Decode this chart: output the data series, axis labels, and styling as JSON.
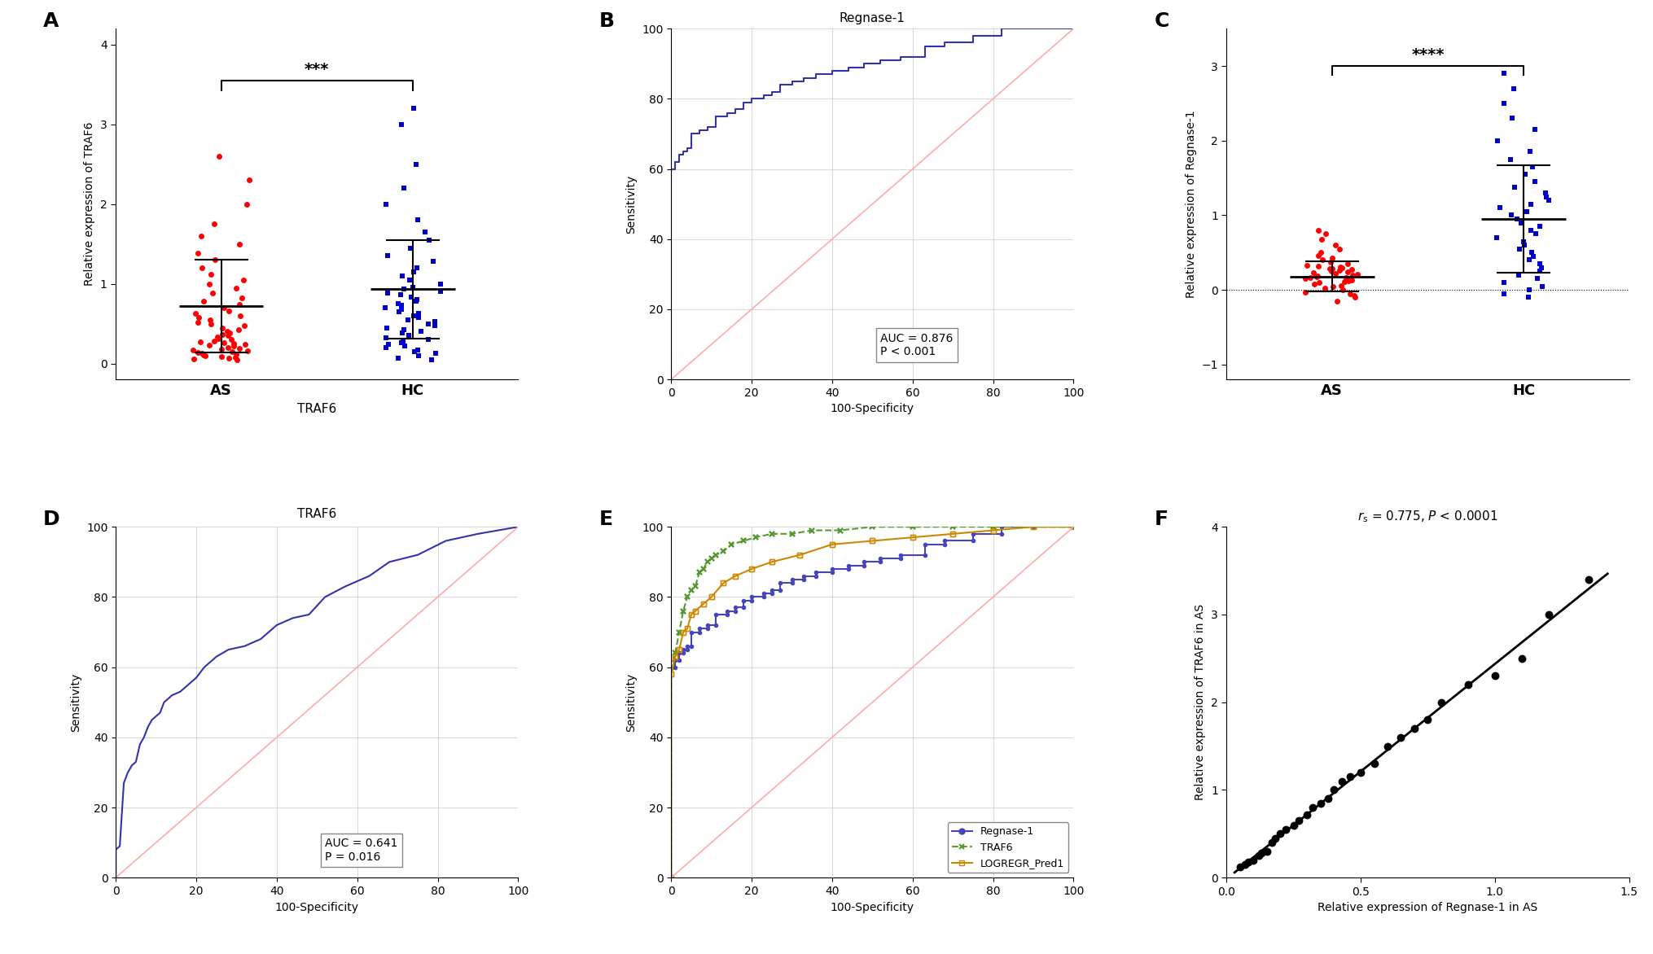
{
  "panel_A": {
    "ylabel": "Relative expression of TRAF6",
    "xlabel": "TRAF6",
    "groups": [
      "AS",
      "HC"
    ],
    "AS_data": [
      0.05,
      0.06,
      0.07,
      0.08,
      0.09,
      0.1,
      0.11,
      0.12,
      0.13,
      0.14,
      0.15,
      0.16,
      0.17,
      0.18,
      0.19,
      0.2,
      0.22,
      0.23,
      0.24,
      0.25,
      0.26,
      0.27,
      0.28,
      0.3,
      0.31,
      0.33,
      0.35,
      0.36,
      0.38,
      0.4,
      0.42,
      0.45,
      0.48,
      0.5,
      0.52,
      0.55,
      0.58,
      0.6,
      0.63,
      0.66,
      0.7,
      0.74,
      0.78,
      0.82,
      0.88,
      0.95,
      1.0,
      1.05,
      1.12,
      1.2,
      1.3,
      1.38,
      1.5,
      1.6,
      1.75,
      2.0,
      2.3,
      2.6
    ],
    "HC_data": [
      0.05,
      0.07,
      0.1,
      0.13,
      0.15,
      0.17,
      0.2,
      0.22,
      0.24,
      0.26,
      0.28,
      0.3,
      0.32,
      0.35,
      0.38,
      0.4,
      0.42,
      0.45,
      0.48,
      0.5,
      0.53,
      0.55,
      0.58,
      0.6,
      0.63,
      0.65,
      0.68,
      0.7,
      0.73,
      0.75,
      0.78,
      0.8,
      0.83,
      0.86,
      0.88,
      0.9,
      0.93,
      0.96,
      1.0,
      1.05,
      1.1,
      1.15,
      1.2,
      1.28,
      1.35,
      1.45,
      1.55,
      1.65,
      1.8,
      2.0,
      2.2,
      2.5,
      3.0,
      3.2
    ],
    "AS_mean": 0.72,
    "AS_sd": 0.58,
    "HC_mean": 0.93,
    "HC_sd": 0.62,
    "AS_color": "#FF0000",
    "HC_color": "#0000CC",
    "significance": "***",
    "ylim": [
      -0.2,
      4.2
    ],
    "yticks": [
      0,
      1,
      2,
      3,
      4
    ]
  },
  "panel_B": {
    "subtitle": "Regnase-1",
    "xlabel": "100-Specificity",
    "ylabel": "Sensitivity",
    "auc_text": "AUC = 0.876\nP < 0.001",
    "roc_color": "#3333AA",
    "diag_color": "#FFAAAA",
    "xlim": [
      0,
      100
    ],
    "ylim": [
      0,
      100
    ],
    "xticks": [
      0,
      20,
      40,
      60,
      80,
      100
    ],
    "yticks": [
      0,
      20,
      40,
      60,
      80,
      100
    ],
    "spec": [
      0,
      0,
      0,
      1,
      1,
      2,
      2,
      3,
      3,
      4,
      4,
      5,
      5,
      7,
      7,
      9,
      9,
      11,
      11,
      14,
      14,
      16,
      16,
      18,
      18,
      20,
      20,
      23,
      23,
      25,
      25,
      27,
      27,
      30,
      30,
      33,
      33,
      36,
      36,
      40,
      40,
      44,
      44,
      48,
      48,
      52,
      52,
      57,
      57,
      63,
      63,
      68,
      68,
      75,
      75,
      82,
      82,
      90,
      90,
      100
    ],
    "sens": [
      0,
      60,
      60,
      60,
      62,
      62,
      64,
      64,
      65,
      65,
      66,
      66,
      70,
      70,
      71,
      71,
      72,
      72,
      75,
      75,
      76,
      76,
      77,
      77,
      79,
      79,
      80,
      80,
      81,
      81,
      82,
      82,
      84,
      84,
      85,
      85,
      86,
      86,
      87,
      87,
      88,
      88,
      89,
      89,
      90,
      90,
      91,
      91,
      92,
      92,
      95,
      95,
      96,
      96,
      98,
      98,
      100,
      100,
      100,
      100
    ]
  },
  "panel_C": {
    "ylabel": "Relative expression of Regnase-1",
    "groups": [
      "AS",
      "HC"
    ],
    "AS_data": [
      -0.15,
      -0.1,
      -0.08,
      -0.05,
      -0.03,
      0.0,
      0.02,
      0.04,
      0.06,
      0.08,
      0.1,
      0.11,
      0.12,
      0.13,
      0.14,
      0.15,
      0.16,
      0.17,
      0.18,
      0.19,
      0.2,
      0.21,
      0.22,
      0.23,
      0.24,
      0.25,
      0.26,
      0.27,
      0.28,
      0.29,
      0.3,
      0.31,
      0.32,
      0.33,
      0.35,
      0.37,
      0.4,
      0.43,
      0.46,
      0.5,
      0.55,
      0.6,
      0.68,
      0.75,
      0.8
    ],
    "HC_data": [
      -0.1,
      -0.05,
      0.0,
      0.05,
      0.1,
      0.15,
      0.2,
      0.25,
      0.3,
      0.35,
      0.4,
      0.45,
      0.5,
      0.55,
      0.6,
      0.65,
      0.7,
      0.75,
      0.8,
      0.85,
      0.9,
      0.95,
      1.0,
      1.05,
      1.1,
      1.15,
      1.2,
      1.25,
      1.3,
      1.38,
      1.45,
      1.55,
      1.65,
      1.75,
      1.85,
      2.0,
      2.15,
      2.3,
      2.5,
      2.7,
      2.9
    ],
    "AS_mean": 0.18,
    "AS_sd": 0.2,
    "HC_mean": 0.95,
    "HC_sd": 0.72,
    "AS_color": "#FF0000",
    "HC_color": "#0000CC",
    "significance": "****",
    "ylim": [
      -1.2,
      3.5
    ],
    "yticks": [
      -1,
      0,
      1,
      2,
      3
    ]
  },
  "panel_D": {
    "subtitle": "TRAF6",
    "xlabel": "100-Specificity",
    "ylabel": "Sensitivity",
    "auc_text": "AUC = 0.641\nP = 0.016",
    "roc_color": "#3333AA",
    "diag_color": "#FFAAAA",
    "xlim": [
      0,
      100
    ],
    "ylim": [
      0,
      100
    ],
    "xticks": [
      0,
      20,
      40,
      60,
      80,
      100
    ],
    "yticks": [
      0,
      20,
      40,
      60,
      80,
      100
    ],
    "spec": [
      0,
      0,
      0,
      1,
      1,
      2,
      2,
      3,
      3,
      4,
      4,
      5,
      5,
      6,
      6,
      7,
      7,
      8,
      8,
      9,
      9,
      10,
      10,
      11,
      11,
      12,
      12,
      14,
      14,
      16,
      16,
      18,
      18,
      20,
      20,
      22,
      22,
      25,
      25,
      28,
      28,
      32,
      32,
      36,
      36,
      40,
      40,
      44,
      44,
      48,
      48,
      52,
      52,
      57,
      57,
      63,
      63,
      68,
      68,
      75,
      75,
      82,
      82,
      90,
      90,
      100
    ],
    "sens": [
      0,
      8,
      8,
      9,
      9,
      27,
      27,
      30,
      30,
      32,
      32,
      33,
      33,
      38,
      38,
      40,
      40,
      43,
      43,
      45,
      45,
      46,
      46,
      47,
      47,
      50,
      50,
      52,
      52,
      53,
      53,
      55,
      55,
      57,
      57,
      60,
      60,
      63,
      63,
      65,
      65,
      66,
      66,
      68,
      68,
      72,
      72,
      74,
      74,
      75,
      75,
      80,
      80,
      83,
      83,
      86,
      86,
      90,
      90,
      92,
      92,
      96,
      96,
      98,
      98,
      100
    ]
  },
  "panel_E": {
    "xlabel": "100-Specificity",
    "ylabel": "Sensitivity",
    "xlim": [
      0,
      100
    ],
    "ylim": [
      0,
      100
    ],
    "xticks": [
      0,
      20,
      40,
      60,
      80,
      100
    ],
    "yticks": [
      0,
      20,
      40,
      60,
      80,
      100
    ],
    "legend": [
      "Regnase-1",
      "TRAF6",
      "LOGREGR_Pred1"
    ],
    "colors": [
      "#4444BB",
      "#559933",
      "#CC8800"
    ],
    "regnase_spec": [
      0,
      0,
      0,
      1,
      1,
      2,
      2,
      3,
      3,
      4,
      4,
      5,
      5,
      7,
      7,
      9,
      9,
      11,
      11,
      14,
      14,
      16,
      16,
      18,
      18,
      20,
      20,
      23,
      23,
      25,
      25,
      27,
      27,
      30,
      30,
      33,
      33,
      36,
      36,
      40,
      40,
      44,
      44,
      48,
      48,
      52,
      52,
      57,
      57,
      63,
      63,
      68,
      68,
      75,
      75,
      82,
      82,
      90,
      90,
      100
    ],
    "regnase_sens": [
      0,
      60,
      60,
      60,
      62,
      62,
      64,
      64,
      65,
      65,
      66,
      66,
      70,
      70,
      71,
      71,
      72,
      72,
      75,
      75,
      76,
      76,
      77,
      77,
      79,
      79,
      80,
      80,
      81,
      81,
      82,
      82,
      84,
      84,
      85,
      85,
      86,
      86,
      87,
      87,
      88,
      88,
      89,
      89,
      90,
      90,
      91,
      91,
      92,
      92,
      95,
      95,
      96,
      96,
      98,
      98,
      100,
      100,
      100,
      100
    ],
    "traf6_spec": [
      0,
      0,
      0,
      1,
      1,
      2,
      2,
      3,
      3,
      4,
      4,
      5,
      5,
      6,
      6,
      7,
      7,
      8,
      8,
      9,
      9,
      10,
      10,
      11,
      11,
      13,
      13,
      15,
      15,
      18,
      18,
      21,
      21,
      25,
      25,
      30,
      30,
      35,
      35,
      42,
      42,
      50,
      50,
      60,
      60,
      70,
      70,
      80,
      80,
      100
    ],
    "traf6_sens": [
      0,
      60,
      60,
      64,
      64,
      70,
      70,
      76,
      76,
      80,
      80,
      82,
      82,
      83,
      83,
      87,
      87,
      88,
      88,
      90,
      90,
      91,
      91,
      92,
      92,
      93,
      93,
      95,
      95,
      96,
      96,
      97,
      97,
      98,
      98,
      98,
      98,
      99,
      99,
      99,
      99,
      100,
      100,
      100,
      100,
      100,
      100,
      100,
      100,
      100
    ],
    "logregr_spec": [
      0,
      0,
      0,
      1,
      1,
      2,
      2,
      3,
      3,
      4,
      4,
      5,
      5,
      6,
      6,
      8,
      8,
      10,
      10,
      13,
      13,
      16,
      16,
      20,
      20,
      25,
      25,
      32,
      32,
      40,
      40,
      50,
      50,
      60,
      60,
      70,
      70,
      80,
      80,
      90,
      90,
      100
    ],
    "logregr_sens": [
      0,
      58,
      58,
      63,
      63,
      65,
      65,
      70,
      70,
      71,
      71,
      75,
      75,
      76,
      76,
      78,
      78,
      80,
      80,
      84,
      84,
      86,
      86,
      88,
      88,
      90,
      90,
      92,
      92,
      95,
      95,
      96,
      96,
      97,
      97,
      98,
      98,
      99,
      99,
      100,
      100,
      100
    ]
  },
  "panel_F": {
    "xlabel": "Relative expression of Regnase-1 in AS",
    "ylabel": "Relative expression of TRAF6 in AS",
    "dot_color": "#000000",
    "line_color": "#000000",
    "xlim": [
      0.0,
      1.5
    ],
    "ylim": [
      0.0,
      4.0
    ],
    "xticks": [
      0.0,
      0.5,
      1.0,
      1.5
    ],
    "yticks": [
      0,
      1,
      2,
      3,
      4
    ],
    "x_data": [
      0.05,
      0.07,
      0.08,
      0.1,
      0.12,
      0.13,
      0.15,
      0.17,
      0.18,
      0.2,
      0.22,
      0.25,
      0.27,
      0.3,
      0.32,
      0.35,
      0.38,
      0.4,
      0.43,
      0.46,
      0.5,
      0.55,
      0.6,
      0.65,
      0.7,
      0.75,
      0.8,
      0.9,
      1.0,
      1.1,
      1.2,
      1.35
    ],
    "y_data": [
      0.12,
      0.15,
      0.18,
      0.2,
      0.25,
      0.28,
      0.3,
      0.4,
      0.45,
      0.5,
      0.55,
      0.6,
      0.65,
      0.72,
      0.8,
      0.85,
      0.9,
      1.0,
      1.1,
      1.15,
      1.2,
      1.3,
      1.5,
      1.6,
      1.7,
      1.8,
      2.0,
      2.2,
      2.3,
      2.5,
      3.0,
      3.4
    ]
  },
  "background_color": "#FFFFFF"
}
